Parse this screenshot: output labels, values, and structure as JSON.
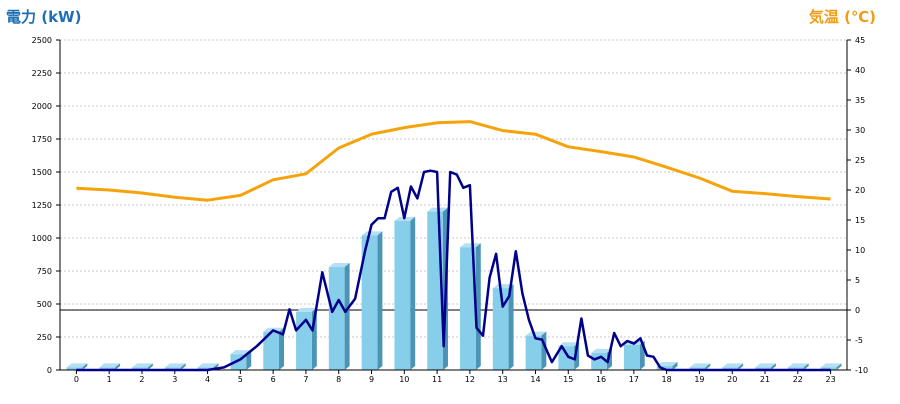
{
  "chart_data": {
    "type": "bar+line",
    "left_axis_title": "電力 (kW)",
    "right_axis_title": "気温 (℃)",
    "categories": [
      "0",
      "1",
      "2",
      "3",
      "4",
      "5",
      "6",
      "7",
      "8",
      "9",
      "10",
      "11",
      "12",
      "13",
      "14",
      "15",
      "16",
      "17",
      "18",
      "19",
      "20",
      "21",
      "22",
      "23"
    ],
    "left_ticks": [
      "0",
      "250",
      "500",
      "750",
      "1000",
      "1250",
      "1500",
      "1750",
      "2000",
      "2250",
      "2500"
    ],
    "right_ticks": [
      "-10",
      "-5",
      "0",
      "5",
      "10",
      "15",
      "20",
      "25",
      "30",
      "35",
      "40",
      "45"
    ],
    "ylim_left": [
      0,
      2500
    ],
    "ylim_right": [
      -10,
      45
    ],
    "grid": true,
    "series": [
      {
        "kind": "bar",
        "axis": "left",
        "color": "#87ceeb",
        "values": [
          20,
          20,
          20,
          20,
          20,
          120,
          290,
          440,
          780,
          1020,
          1130,
          1200,
          930,
          620,
          260,
          180,
          130,
          190,
          30,
          20,
          20,
          20,
          20,
          20
        ]
      },
      {
        "kind": "line",
        "axis": "right",
        "color": "#f5a30a",
        "values": [
          20.3,
          20.0,
          19.5,
          18.8,
          18.3,
          19.1,
          21.7,
          22.7,
          27.0,
          29.3,
          30.4,
          31.2,
          31.4,
          29.9,
          29.3,
          27.2,
          26.4,
          25.5,
          23.8,
          22.0,
          19.8,
          19.4,
          18.9,
          18.5
        ]
      },
      {
        "kind": "line",
        "axis": "left",
        "color": "#00008b",
        "x": [
          0,
          1,
          2,
          3,
          4,
          4.5,
          5,
          5.5,
          6,
          6.3,
          6.5,
          6.7,
          7,
          7.2,
          7.5,
          7.8,
          8,
          8.2,
          8.5,
          8.8,
          9,
          9.2,
          9.4,
          9.6,
          9.8,
          10,
          10.2,
          10.4,
          10.6,
          10.8,
          11,
          11.2,
          11.4,
          11.6,
          11.8,
          12,
          12.2,
          12.4,
          12.6,
          12.8,
          13,
          13.2,
          13.4,
          13.6,
          13.8,
          14,
          14.2,
          14.5,
          14.8,
          15,
          15.2,
          15.4,
          15.6,
          15.8,
          16,
          16.2,
          16.4,
          16.6,
          16.8,
          17,
          17.2,
          17.4,
          17.6,
          17.8,
          18,
          19,
          20,
          21,
          22,
          23
        ],
        "values": [
          0,
          0,
          0,
          0,
          0,
          20,
          80,
          180,
          300,
          270,
          460,
          300,
          380,
          300,
          740,
          440,
          530,
          440,
          540,
          900,
          1100,
          1150,
          1150,
          1350,
          1380,
          1150,
          1390,
          1300,
          1500,
          1510,
          1500,
          180,
          1500,
          1480,
          1380,
          1400,
          320,
          260,
          700,
          880,
          480,
          560,
          900,
          580,
          380,
          240,
          230,
          60,
          180,
          100,
          80,
          390,
          110,
          80,
          100,
          60,
          280,
          180,
          220,
          200,
          240,
          110,
          100,
          20,
          0,
          0,
          0,
          0,
          0,
          0
        ]
      }
    ]
  }
}
